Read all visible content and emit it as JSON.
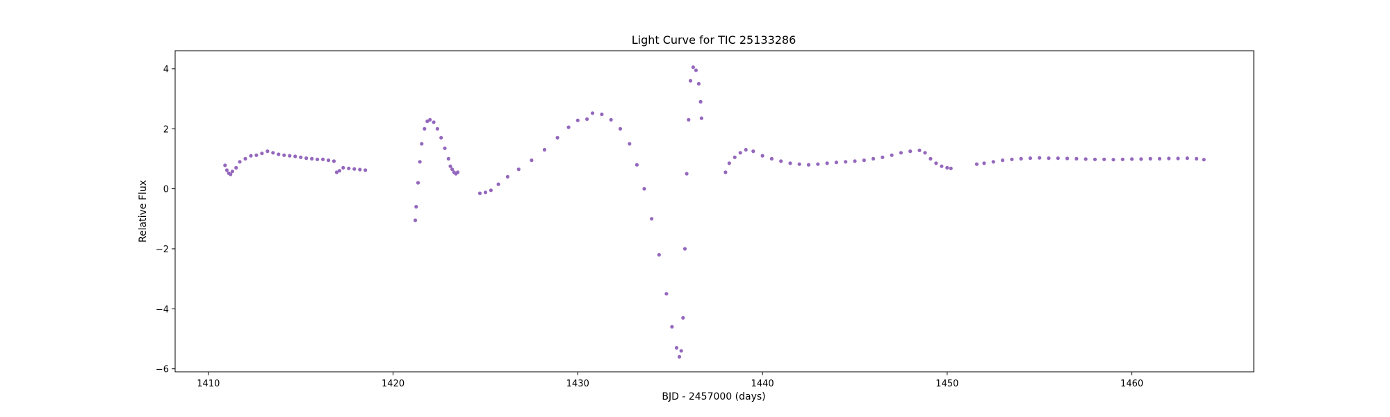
{
  "chart_data": {
    "type": "scatter",
    "title": "Light Curve for TIC 25133286",
    "xlabel": "BJD - 2457000 (days)",
    "ylabel": "Relative Flux",
    "xlim": [
      1408.2,
      1466.6
    ],
    "ylim": [
      -6.1,
      4.6
    ],
    "xticks": [
      1410,
      1420,
      1430,
      1440,
      1450,
      1460
    ],
    "yticks": [
      -6,
      -4,
      -2,
      0,
      2,
      4
    ],
    "ytick_labels": [
      "−6",
      "−4",
      "−2",
      "0",
      "2",
      "4"
    ],
    "grid": false,
    "legend": "none",
    "marker_color": "#9467bd",
    "series": [
      {
        "points": [
          [
            1410.9,
            0.78
          ],
          [
            1411.0,
            0.62
          ],
          [
            1411.1,
            0.52
          ],
          [
            1411.2,
            0.48
          ],
          [
            1411.3,
            0.58
          ],
          [
            1411.5,
            0.7
          ],
          [
            1411.7,
            0.9
          ],
          [
            1412.0,
            1.0
          ],
          [
            1412.3,
            1.1
          ],
          [
            1412.6,
            1.12
          ],
          [
            1412.9,
            1.18
          ],
          [
            1413.2,
            1.25
          ],
          [
            1413.5,
            1.2
          ],
          [
            1413.8,
            1.15
          ],
          [
            1414.1,
            1.12
          ],
          [
            1414.4,
            1.1
          ],
          [
            1414.7,
            1.08
          ],
          [
            1415.0,
            1.05
          ],
          [
            1415.3,
            1.02
          ],
          [
            1415.6,
            1.0
          ],
          [
            1415.9,
            0.98
          ],
          [
            1416.2,
            0.98
          ],
          [
            1416.5,
            0.95
          ],
          [
            1416.8,
            0.92
          ],
          [
            1416.95,
            0.55
          ],
          [
            1417.1,
            0.6
          ],
          [
            1417.3,
            0.7
          ],
          [
            1417.6,
            0.68
          ],
          [
            1417.9,
            0.66
          ],
          [
            1418.2,
            0.64
          ],
          [
            1418.5,
            0.62
          ]
        ]
      },
      {
        "points": [
          [
            1421.2,
            -1.05
          ],
          [
            1421.25,
            -0.6
          ],
          [
            1421.35,
            0.2
          ],
          [
            1421.45,
            0.9
          ],
          [
            1421.55,
            1.5
          ],
          [
            1421.7,
            2.0
          ],
          [
            1421.85,
            2.25
          ],
          [
            1422.0,
            2.3
          ],
          [
            1422.2,
            2.22
          ],
          [
            1422.4,
            2.0
          ],
          [
            1422.6,
            1.7
          ],
          [
            1422.8,
            1.35
          ],
          [
            1423.0,
            1.0
          ],
          [
            1423.1,
            0.75
          ],
          [
            1423.2,
            0.65
          ],
          [
            1423.3,
            0.55
          ],
          [
            1423.4,
            0.5
          ],
          [
            1423.5,
            0.55
          ]
        ]
      },
      {
        "points": [
          [
            1424.7,
            -0.15
          ],
          [
            1425.0,
            -0.12
          ],
          [
            1425.3,
            -0.05
          ],
          [
            1425.7,
            0.15
          ],
          [
            1426.2,
            0.4
          ],
          [
            1426.8,
            0.65
          ],
          [
            1427.5,
            0.95
          ],
          [
            1428.2,
            1.3
          ],
          [
            1428.9,
            1.7
          ],
          [
            1429.5,
            2.05
          ],
          [
            1430.0,
            2.28
          ],
          [
            1430.5,
            2.32
          ],
          [
            1430.8,
            2.52
          ],
          [
            1431.3,
            2.48
          ],
          [
            1431.8,
            2.3
          ],
          [
            1432.3,
            2.0
          ],
          [
            1432.8,
            1.5
          ],
          [
            1433.2,
            0.8
          ],
          [
            1433.6,
            0.0
          ],
          [
            1434.0,
            -1.0
          ],
          [
            1434.4,
            -2.2
          ],
          [
            1434.8,
            -3.5
          ],
          [
            1435.1,
            -4.6
          ],
          [
            1435.35,
            -5.3
          ],
          [
            1435.5,
            -5.6
          ],
          [
            1435.6,
            -5.4
          ],
          [
            1435.7,
            -4.3
          ],
          [
            1435.8,
            -2.0
          ],
          [
            1435.9,
            0.5
          ],
          [
            1436.0,
            2.3
          ],
          [
            1436.1,
            3.6
          ],
          [
            1436.25,
            4.05
          ],
          [
            1436.4,
            3.95
          ],
          [
            1436.55,
            3.5
          ],
          [
            1436.65,
            2.9
          ],
          [
            1436.7,
            2.35
          ]
        ]
      },
      {
        "points": [
          [
            1438.0,
            0.55
          ],
          [
            1438.2,
            0.85
          ],
          [
            1438.5,
            1.05
          ],
          [
            1438.8,
            1.2
          ],
          [
            1439.1,
            1.3
          ],
          [
            1439.5,
            1.25
          ],
          [
            1440.0,
            1.1
          ],
          [
            1440.5,
            1.0
          ],
          [
            1441.0,
            0.92
          ],
          [
            1441.5,
            0.85
          ],
          [
            1442.0,
            0.82
          ],
          [
            1442.5,
            0.8
          ],
          [
            1443.0,
            0.82
          ],
          [
            1443.5,
            0.85
          ],
          [
            1444.0,
            0.88
          ],
          [
            1444.5,
            0.9
          ],
          [
            1445.0,
            0.92
          ],
          [
            1445.5,
            0.95
          ],
          [
            1446.0,
            1.0
          ],
          [
            1446.5,
            1.05
          ],
          [
            1447.0,
            1.12
          ],
          [
            1447.5,
            1.2
          ],
          [
            1448.0,
            1.25
          ],
          [
            1448.5,
            1.28
          ],
          [
            1448.8,
            1.2
          ],
          [
            1449.1,
            1.0
          ],
          [
            1449.4,
            0.85
          ],
          [
            1449.7,
            0.75
          ],
          [
            1450.0,
            0.7
          ],
          [
            1450.2,
            0.68
          ]
        ]
      },
      {
        "points": [
          [
            1451.6,
            0.82
          ],
          [
            1452.0,
            0.85
          ],
          [
            1452.5,
            0.9
          ],
          [
            1453.0,
            0.95
          ],
          [
            1453.5,
            0.98
          ],
          [
            1454.0,
            1.0
          ],
          [
            1454.5,
            1.02
          ],
          [
            1455.0,
            1.03
          ],
          [
            1455.5,
            1.02
          ],
          [
            1456.0,
            1.02
          ],
          [
            1456.5,
            1.01
          ],
          [
            1457.0,
            1.0
          ],
          [
            1457.5,
            0.99
          ],
          [
            1458.0,
            0.98
          ],
          [
            1458.5,
            0.98
          ],
          [
            1459.0,
            0.97
          ],
          [
            1459.5,
            0.98
          ],
          [
            1460.0,
            0.99
          ],
          [
            1460.5,
            0.99
          ],
          [
            1461.0,
            1.0
          ],
          [
            1461.5,
            1.0
          ],
          [
            1462.0,
            1.01
          ],
          [
            1462.5,
            1.01
          ],
          [
            1463.0,
            1.02
          ],
          [
            1463.5,
            1.0
          ],
          [
            1463.9,
            0.97
          ]
        ]
      }
    ]
  }
}
